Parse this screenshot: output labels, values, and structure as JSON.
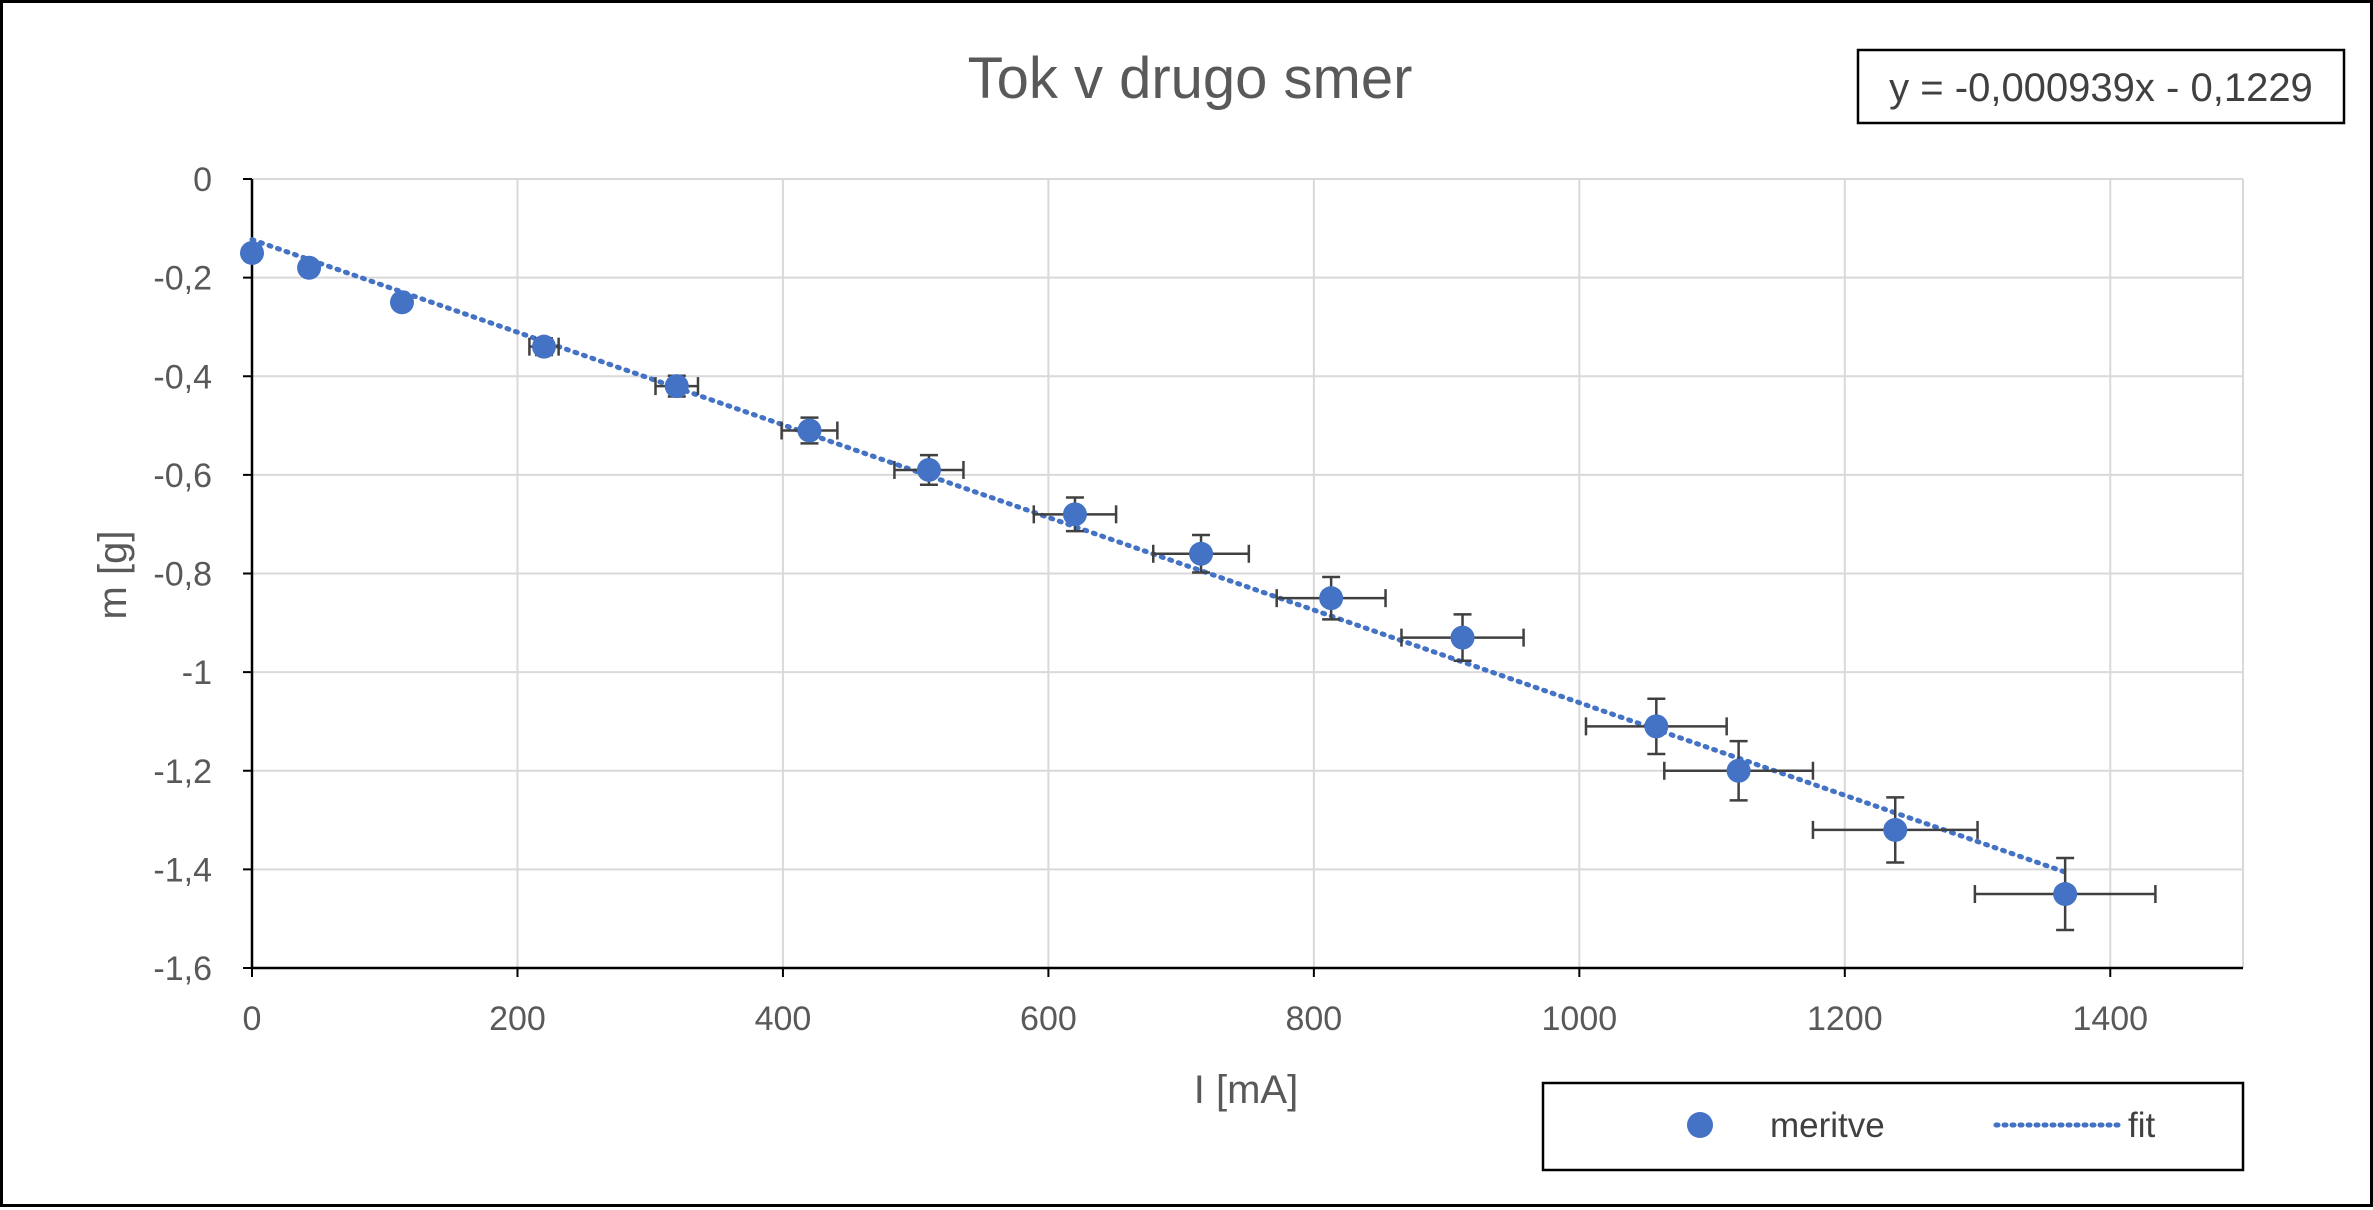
{
  "chart_data": {
    "type": "scatter",
    "title": "Tok v drugo smer",
    "xlabel": "I [mA]",
    "ylabel": "m [g]",
    "xlim": [
      0,
      1500
    ],
    "ylim": [
      -1.6,
      0
    ],
    "x_ticks": [
      "0",
      "200",
      "400",
      "600",
      "800",
      "1000",
      "1200",
      "1400"
    ],
    "y_ticks": [
      "0",
      "-0,2",
      "-0,4",
      "-0,6",
      "-0,8",
      "-1",
      "-1,2",
      "-1,4",
      "-1,6"
    ],
    "grid": true,
    "legend_position": "bottom-right",
    "series": [
      {
        "name": "meritve",
        "kind": "markers",
        "color": "#4472C4",
        "points": [
          {
            "x": 0,
            "y": -0.15,
            "xerr": 0,
            "yerr": 0
          },
          {
            "x": 43,
            "y": -0.18,
            "xerr": 0,
            "yerr": 0
          },
          {
            "x": 113,
            "y": -0.25,
            "xerr": 0,
            "yerr": 0
          },
          {
            "x": 220,
            "y": -0.34,
            "xerr": 11,
            "yerr": 0.017
          },
          {
            "x": 320,
            "y": -0.42,
            "xerr": 16,
            "yerr": 0.021
          },
          {
            "x": 420,
            "y": -0.51,
            "xerr": 21,
            "yerr": 0.026
          },
          {
            "x": 510,
            "y": -0.59,
            "xerr": 26,
            "yerr": 0.03
          },
          {
            "x": 620,
            "y": -0.68,
            "xerr": 31,
            "yerr": 0.034
          },
          {
            "x": 715,
            "y": -0.76,
            "xerr": 36,
            "yerr": 0.038
          },
          {
            "x": 813,
            "y": -0.85,
            "xerr": 41,
            "yerr": 0.043
          },
          {
            "x": 912,
            "y": -0.93,
            "xerr": 46,
            "yerr": 0.047
          },
          {
            "x": 1058,
            "y": -1.11,
            "xerr": 53,
            "yerr": 0.056
          },
          {
            "x": 1120,
            "y": -1.2,
            "xerr": 56,
            "yerr": 0.06
          },
          {
            "x": 1238,
            "y": -1.32,
            "xerr": 62,
            "yerr": 0.066
          },
          {
            "x": 1366,
            "y": -1.45,
            "xerr": 68,
            "yerr": 0.073
          }
        ]
      },
      {
        "name": "fit",
        "kind": "dotted-line",
        "color": "#4472C4",
        "slope": -0.000939,
        "intercept": -0.1229,
        "x_range": [
          0,
          1366
        ]
      }
    ],
    "equation_label": "y = -0,000939x - 0,1229",
    "errorbar_color": "#404040"
  }
}
